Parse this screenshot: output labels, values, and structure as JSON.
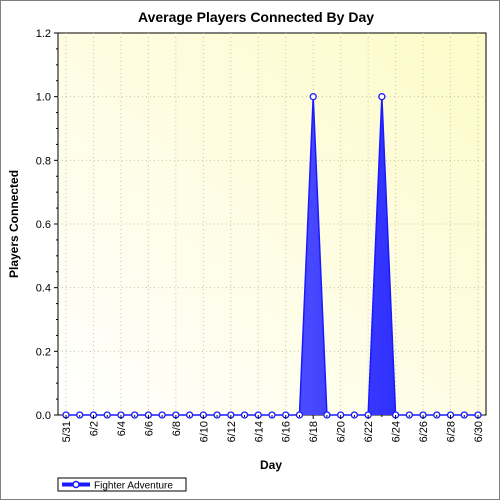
{
  "chart_data": {
    "type": "area",
    "title": "Average Players Connected By Day",
    "xlabel": "Day",
    "ylabel": "Players Connected",
    "ylim": [
      0,
      1.2
    ],
    "y_ticks": [
      "0.0",
      "0.2",
      "0.4",
      "0.6",
      "0.8",
      "1.0",
      "1.2"
    ],
    "x": [
      "5/31",
      "6/1",
      "6/2",
      "6/3",
      "6/4",
      "6/5",
      "6/6",
      "6/7",
      "6/8",
      "6/9",
      "6/10",
      "6/11",
      "6/12",
      "6/13",
      "6/14",
      "6/15",
      "6/16",
      "6/17",
      "6/18",
      "6/19",
      "6/20",
      "6/21",
      "6/22",
      "6/23",
      "6/24",
      "6/25",
      "6/26",
      "6/27",
      "6/28",
      "6/29",
      "6/30"
    ],
    "x_tick_labels": [
      "5/31",
      "6/2",
      "6/4",
      "6/6",
      "6/8",
      "6/10",
      "6/12",
      "6/14",
      "6/16",
      "6/18",
      "6/20",
      "6/22",
      "6/24",
      "6/26",
      "6/28",
      "6/30"
    ],
    "series": [
      {
        "name": "Fighter Adventure",
        "color": "#1a1aff",
        "values": [
          0,
          0,
          0,
          0,
          0,
          0,
          0,
          0,
          0,
          0,
          0,
          0,
          0,
          0,
          0,
          0,
          0,
          0,
          1,
          0,
          0,
          0,
          0,
          1,
          0,
          0,
          0,
          0,
          0,
          0,
          0
        ]
      }
    ],
    "grid": true,
    "legend_position": "bottom-left",
    "background": "#fffde0"
  }
}
